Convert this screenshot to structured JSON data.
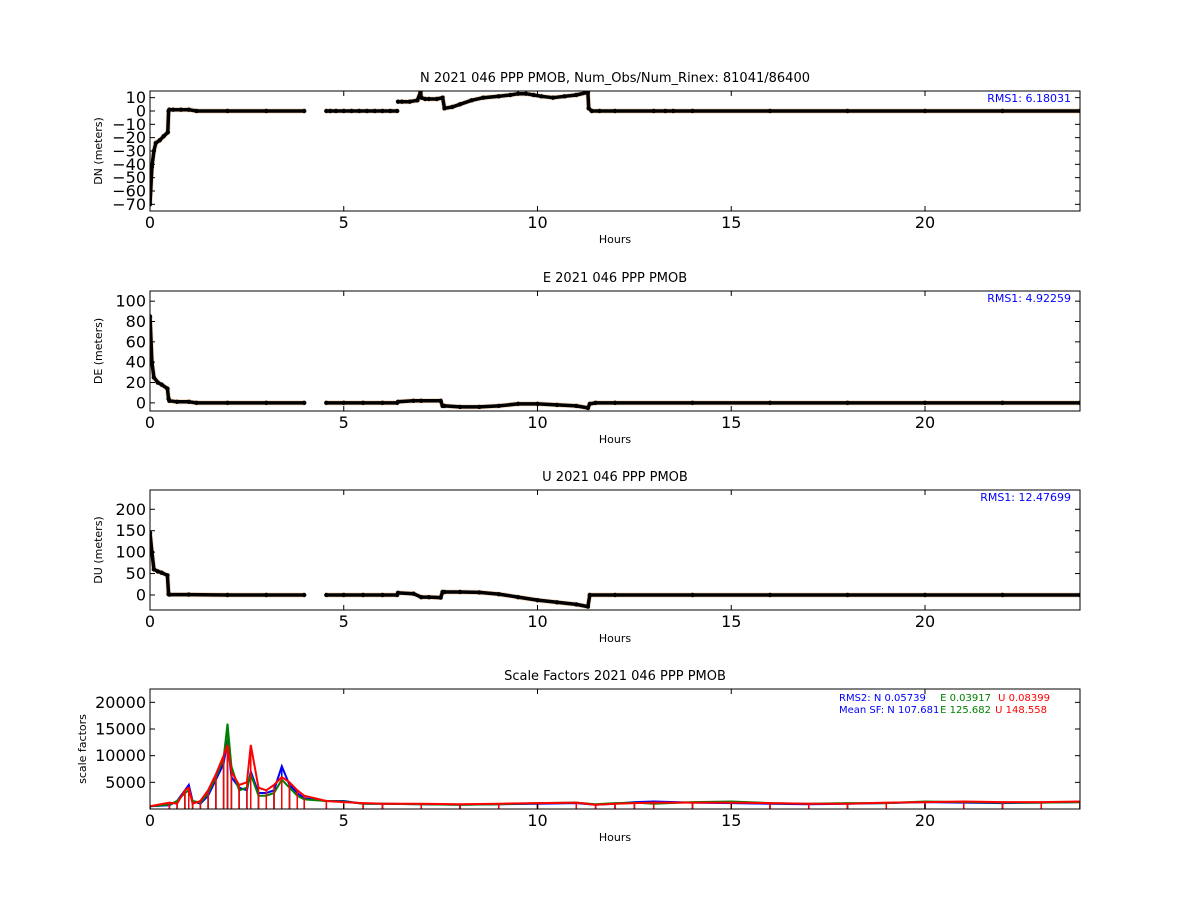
{
  "chart_data": [
    {
      "type": "scatter",
      "title": "N 2021 046 PPP  PMOB, Num_Obs/Num_Rinex: 81041/86400",
      "xlabel": "Hours",
      "ylabel": "DN (meters)",
      "xlim": [
        0,
        24
      ],
      "ylim": [
        -75,
        15
      ],
      "xticks": [
        0,
        5,
        10,
        15,
        20
      ],
      "yticks": [
        10,
        0,
        -10,
        -20,
        -30,
        -40,
        -50,
        -60,
        -70
      ],
      "grid": false,
      "annotations": [
        {
          "text": "RMS1:  6.18031",
          "position": "top-right",
          "color": "#0000ff"
        }
      ],
      "series": [
        {
          "color": "#000000",
          "segments": [
            {
              "x": [
                0,
                0.05,
                0.1,
                0.15,
                0.25,
                0.35,
                0.46,
                0.48,
                0.5,
                0.6,
                0.8,
                1.0,
                1.2,
                2.0,
                3.0,
                3.98
              ],
              "y": [
                -70,
                -42,
                -30,
                -24,
                -22,
                -19,
                -16,
                0,
                1,
                1,
                1,
                1,
                0,
                0,
                0,
                0
              ]
            },
            {
              "x": [
                4.55,
                4.65,
                4.8,
                5.0,
                5.2,
                5.4,
                5.6,
                5.8,
                6.0,
                6.2,
                6.38
              ],
              "y": [
                0,
                0,
                0,
                0,
                0,
                0,
                0,
                0,
                0,
                0,
                0
              ]
            },
            {
              "x": [
                6.4,
                6.5,
                6.7,
                6.9,
                6.98,
                7.0,
                7.1,
                7.2,
                7.4,
                7.55,
                7.6,
                7.8,
                8.0,
                8.3,
                8.6,
                9.0,
                9.3,
                9.5,
                9.7,
                9.9,
                10.1,
                10.4,
                10.7,
                11.0,
                11.3,
                11.32,
                11.4,
                11.6,
                12.0,
                13.0,
                13.3,
                13.5,
                14,
                16,
                18,
                20,
                22,
                24
              ],
              "y": [
                7,
                7,
                7,
                8,
                14,
                10,
                9,
                9,
                9,
                10,
                2,
                3,
                5,
                8,
                10,
                11,
                12,
                13,
                13,
                12,
                11,
                10,
                11,
                12,
                14,
                2,
                0,
                0,
                0,
                0,
                0,
                0,
                0,
                0,
                0,
                0,
                0,
                0
              ]
            }
          ]
        }
      ]
    },
    {
      "type": "scatter",
      "title": "E 2021 046 PPP  PMOB",
      "xlabel": "Hours",
      "ylabel": "DE (meters)",
      "xlim": [
        0,
        24
      ],
      "ylim": [
        -8,
        110
      ],
      "xticks": [
        0,
        5,
        10,
        15,
        20
      ],
      "yticks": [
        100,
        80,
        60,
        40,
        20,
        0
      ],
      "grid": false,
      "annotations": [
        {
          "text": "RMS1:  4.92259",
          "position": "top-right",
          "color": "#0000ff"
        }
      ],
      "series": [
        {
          "color": "#000000",
          "segments": [
            {
              "x": [
                0,
                0.05,
                0.1,
                0.2,
                0.3,
                0.45,
                0.48,
                0.5,
                0.7,
                1.0,
                1.2,
                2.0,
                3.0,
                3.98
              ],
              "y": [
                85,
                40,
                25,
                20,
                18,
                14,
                4,
                2,
                1,
                1,
                0,
                0,
                0,
                0
              ]
            },
            {
              "x": [
                4.55,
                5.0,
                5.5,
                6.0,
                6.38
              ],
              "y": [
                0,
                0,
                0,
                0,
                0
              ]
            },
            {
              "x": [
                6.4,
                6.8,
                7.0,
                7.5,
                7.55,
                7.6,
                8.0,
                8.5,
                9.0,
                9.5,
                10.0,
                10.5,
                11.0,
                11.3,
                11.35,
                11.5,
                12.0,
                14.0,
                16.0,
                18.0,
                20.0,
                22.0,
                24.0
              ],
              "y": [
                1,
                2,
                2,
                2,
                -3,
                -3,
                -4,
                -4,
                -3,
                -1,
                -1,
                -2,
                -3,
                -5,
                -1,
                0,
                0,
                0,
                0,
                0,
                0,
                0,
                0
              ]
            }
          ]
        }
      ]
    },
    {
      "type": "scatter",
      "title": "U 2021 046 PPP  PMOB",
      "xlabel": "Hours",
      "ylabel": "DU (meters)",
      "xlim": [
        0,
        24
      ],
      "ylim": [
        -35,
        245
      ],
      "xticks": [
        0,
        5,
        10,
        15,
        20
      ],
      "yticks": [
        200,
        150,
        100,
        50,
        0
      ],
      "grid": false,
      "annotations": [
        {
          "text": "RMS1: 12.47699",
          "position": "top-right",
          "color": "#0000ff"
        }
      ],
      "series": [
        {
          "color": "#000000",
          "segments": [
            {
              "x": [
                0,
                0.05,
                0.1,
                0.2,
                0.3,
                0.45,
                0.48,
                0.5,
                1.0,
                2.0,
                3.0,
                3.98
              ],
              "y": [
                145,
                100,
                60,
                55,
                52,
                46,
                2,
                1,
                1,
                0,
                0,
                0
              ]
            },
            {
              "x": [
                4.55,
                5.0,
                5.5,
                6.0,
                6.38
              ],
              "y": [
                0,
                0,
                0,
                0,
                0
              ]
            },
            {
              "x": [
                6.4,
                6.8,
                7.0,
                7.2,
                7.5,
                7.55,
                7.6,
                8.0,
                8.5,
                9.0,
                9.5,
                10.0,
                10.5,
                11.0,
                11.3,
                11.35,
                12.0,
                14.0,
                16.0,
                18.0,
                20.0,
                22.0,
                24.0
              ],
              "y": [
                5,
                3,
                -5,
                -5,
                -6,
                7,
                7,
                7,
                6,
                2,
                -5,
                -12,
                -17,
                -22,
                -27,
                0,
                0,
                0,
                0,
                0,
                0,
                0,
                0
              ]
            }
          ]
        }
      ]
    },
    {
      "type": "line",
      "title": "Scale Factors 2021 046 PPP  PMOB",
      "xlabel": "Hours",
      "ylabel": "scale factors",
      "xlim": [
        0,
        24
      ],
      "ylim": [
        0,
        22500
      ],
      "xticks": [
        0,
        5,
        10,
        15,
        20
      ],
      "yticks": [
        20000,
        15000,
        10000,
        5000
      ],
      "grid": false,
      "annotations": [
        {
          "text": "RMS2: N  0.05739",
          "color": "#0000ff"
        },
        {
          "text": "E  0.03917",
          "color": "#008000"
        },
        {
          "text": "U  0.08399",
          "color": "#ff0000"
        },
        {
          "text": "Mean SF: N 107.681",
          "color": "#0000ff"
        },
        {
          "text": "E 125.682",
          "color": "#008000"
        },
        {
          "text": "U 148.558",
          "color": "#ff0000"
        }
      ],
      "series": [
        {
          "color": "#0000ff",
          "x": [
            0,
            0.5,
            0.7,
            0.9,
            1.0,
            1.1,
            1.3,
            1.5,
            1.7,
            1.9,
            2.0,
            2.1,
            2.3,
            2.5,
            2.6,
            2.8,
            3.0,
            3.2,
            3.4,
            3.6,
            3.8,
            3.98,
            4.55,
            5.0,
            5.5,
            6.0,
            7.0,
            8.0,
            9.0,
            10.0,
            11.0,
            11.5,
            12.0,
            12.5,
            13.0,
            14.0,
            15.0,
            16.0,
            17.0,
            18.0,
            19.0,
            20.0,
            21.0,
            22.0,
            23.0,
            24.0
          ],
          "y": [
            500,
            700,
            1500,
            3500,
            4500,
            1500,
            1000,
            2500,
            5500,
            8500,
            13000,
            6000,
            4000,
            3500,
            7000,
            3000,
            3000,
            3500,
            8000,
            4500,
            3000,
            2000,
            1500,
            1500,
            1000,
            1000,
            900,
            800,
            900,
            1000,
            1100,
            800,
            1000,
            1300,
            1400,
            1200,
            1100,
            1000,
            900,
            1000,
            1100,
            1300,
            1200,
            1100,
            1200,
            1300
          ]
        },
        {
          "color": "#008000",
          "x": [
            0,
            0.5,
            0.7,
            0.9,
            1.0,
            1.1,
            1.3,
            1.5,
            1.7,
            1.9,
            2.0,
            2.1,
            2.3,
            2.5,
            2.6,
            2.8,
            3.0,
            3.2,
            3.4,
            3.6,
            3.8,
            3.98,
            4.55,
            5.0,
            5.5,
            6.0,
            7.0,
            8.0,
            9.0,
            10.0,
            11.0,
            11.5,
            12.0,
            12.5,
            13.0,
            14.0,
            15.0,
            16.0,
            17.0,
            18.0,
            19.0,
            20.0,
            21.0,
            22.0,
            23.0,
            24.0
          ],
          "y": [
            500,
            800,
            1500,
            3000,
            3500,
            1500,
            1200,
            3000,
            6000,
            9500,
            16000,
            8000,
            3500,
            4000,
            6500,
            2500,
            2500,
            3000,
            5500,
            4000,
            2500,
            1800,
            1500,
            1400,
            1000,
            1000,
            900,
            800,
            900,
            1100,
            1200,
            900,
            1100,
            1200,
            1000,
            1300,
            1400,
            1100,
            1000,
            1100,
            1100,
            1400,
            1300,
            1200,
            1200,
            1300
          ]
        },
        {
          "color": "#ff0000",
          "x": [
            0,
            0.5,
            0.7,
            0.9,
            1.0,
            1.1,
            1.3,
            1.5,
            1.7,
            1.9,
            2.0,
            2.1,
            2.3,
            2.5,
            2.6,
            2.8,
            3.0,
            3.2,
            3.4,
            3.6,
            3.8,
            3.98,
            4.55,
            5.0,
            5.5,
            6.0,
            7.0,
            8.0,
            9.0,
            10.0,
            11.0,
            11.5,
            12.0,
            12.5,
            13.0,
            14.0,
            15.0,
            16.0,
            17.0,
            18.0,
            19.0,
            20.0,
            21.0,
            22.0,
            23.0,
            24.0
          ],
          "y": [
            500,
            1200,
            1000,
            3500,
            4000,
            1000,
            1500,
            3500,
            6500,
            10000,
            12000,
            7000,
            4500,
            5000,
            12000,
            4000,
            3500,
            4500,
            6000,
            5000,
            3500,
            2500,
            1500,
            1300,
            1100,
            1000,
            1000,
            900,
            1000,
            1100,
            1200,
            800,
            1000,
            1100,
            1200,
            1200,
            1200,
            1100,
            1000,
            1000,
            1200,
            1300,
            1400,
            1300,
            1300,
            1400
          ]
        }
      ]
    }
  ]
}
